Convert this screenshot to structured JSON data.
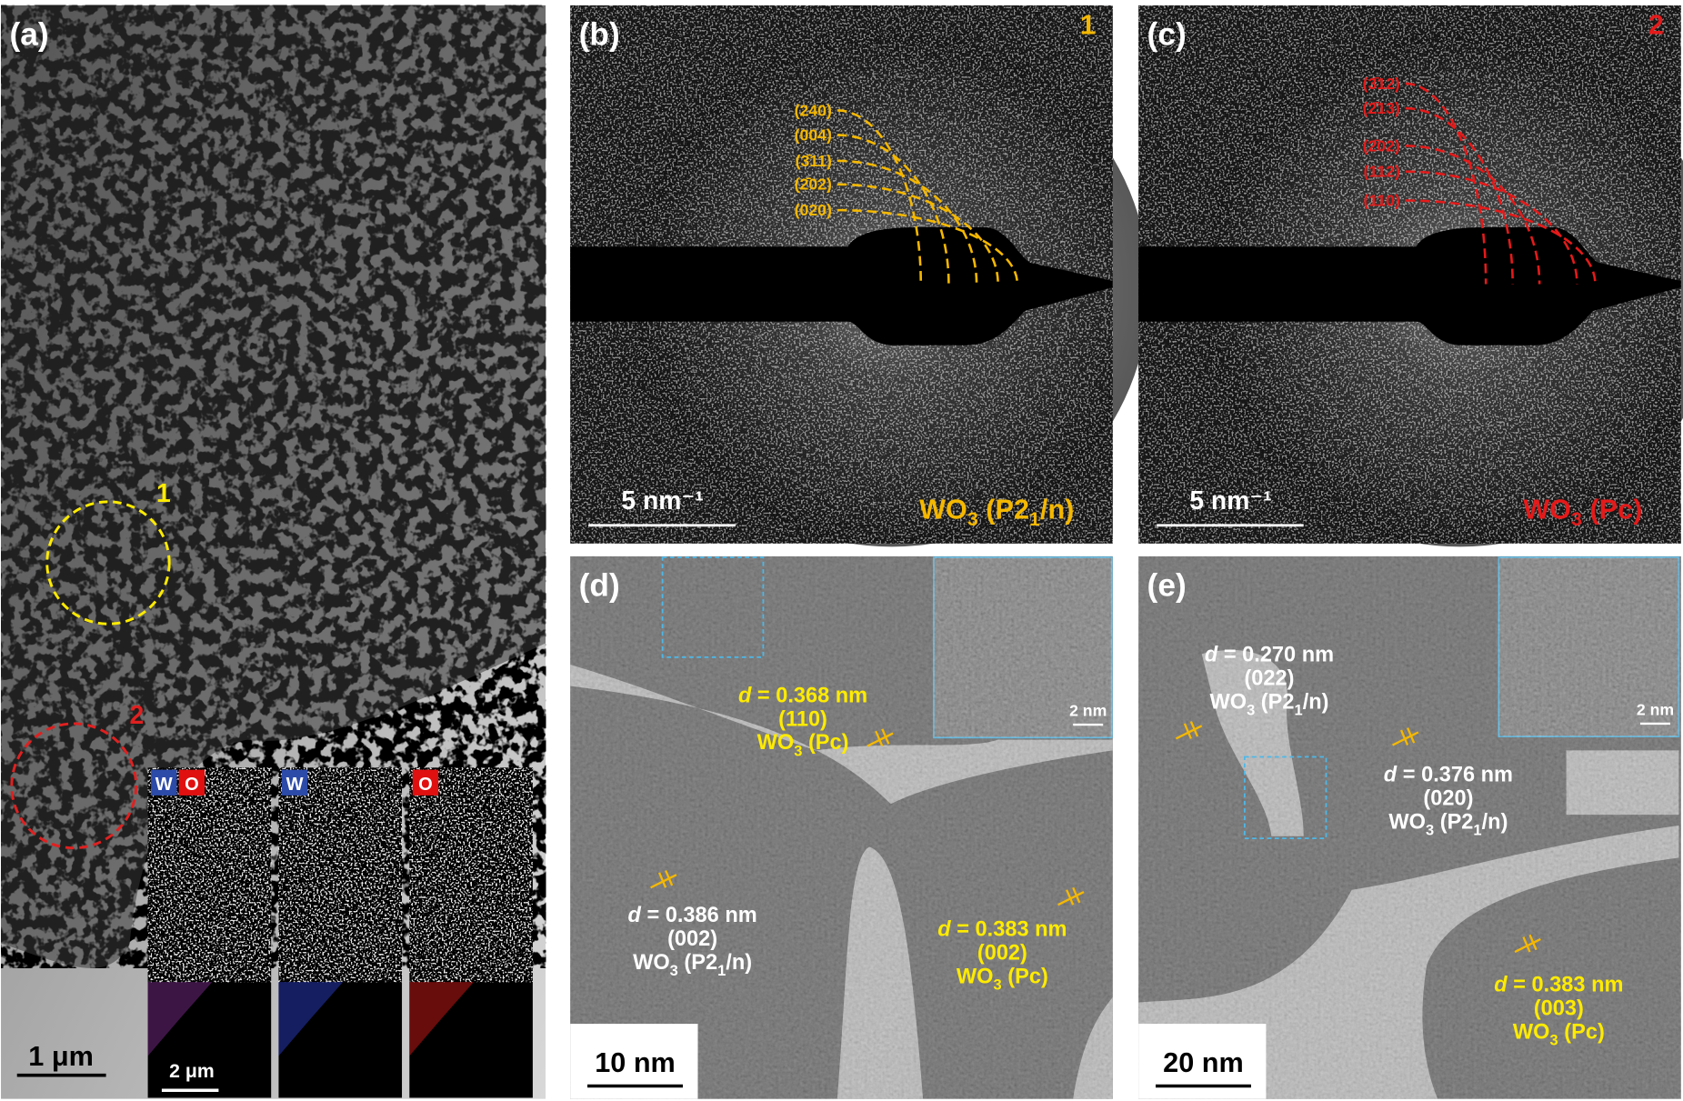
{
  "panel_a": {
    "label": "(a)",
    "regions": [
      "1",
      "2"
    ],
    "scale_bar": "1 μm",
    "eds": {
      "maps": [
        [
          "W",
          "O"
        ],
        [
          "W"
        ],
        [
          "O"
        ]
      ],
      "scale_bar": "2 μm"
    }
  },
  "panel_b": {
    "label": "(b)",
    "region": "1",
    "rings": [
      "(240)",
      "(004)",
      "(3̄11)",
      "(2̄02)",
      "(020)"
    ],
    "scale_bar": "5 nm⁻¹",
    "phase": [
      "WO",
      "3",
      " (P2",
      "1",
      "/n)"
    ]
  },
  "panel_c": {
    "label": "(c)",
    "region": "2",
    "rings": [
      "(3̄12)",
      "(2̄13)",
      "(2̄02)",
      "(112)",
      "(110)"
    ],
    "scale_bar": "5 nm⁻¹",
    "phase": [
      "WO",
      "3",
      " (Pc)"
    ]
  },
  "panel_d": {
    "label": "(d)",
    "scale_bar": "10 nm",
    "inset_scale_bar": "2 nm",
    "fringes": [
      {
        "d": [
          "d",
          " = 0.368 nm"
        ],
        "plane": "(110)",
        "phase": [
          "WO",
          "3",
          " (Pc)"
        ]
      },
      {
        "d": [
          "d",
          " = 0.386 nm"
        ],
        "plane": "(002)",
        "phase": [
          "WO",
          "3",
          " (P2",
          "1",
          "/n)"
        ]
      },
      {
        "d": [
          "d",
          " = 0.383 nm"
        ],
        "plane": "(002)",
        "phase": [
          "WO",
          "3",
          " (Pc)"
        ]
      }
    ]
  },
  "panel_e": {
    "label": "(e)",
    "scale_bar": "20 nm",
    "inset_scale_bar": "2 nm",
    "fringes": [
      {
        "d": [
          "d",
          " = 0.270 nm"
        ],
        "plane": "(022)",
        "phase": [
          "WO",
          "3",
          " (P2",
          "1",
          "/n)"
        ]
      },
      {
        "d": [
          "d",
          " = 0.376 nm"
        ],
        "plane": "(020)",
        "phase": [
          "WO",
          "3",
          " (P2",
          "1",
          "/n)"
        ]
      },
      {
        "d": [
          "d",
          " = 0.383 nm"
        ],
        "plane": "(003)",
        "phase": [
          "WO",
          "3",
          " (Pc)"
        ]
      }
    ]
  }
}
